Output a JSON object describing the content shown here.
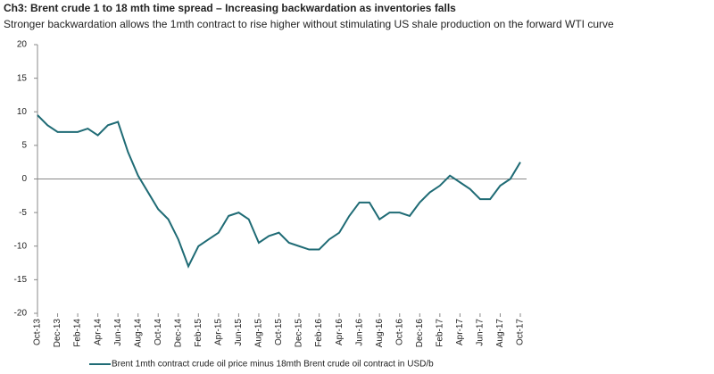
{
  "chart_data": {
    "type": "line",
    "title": "Ch3: Brent crude 1 to 18 mth time spread – Increasing backwardation as inventories falls",
    "subtitle": "Stronger backwardation allows the 1mth contract to rise higher without stimulating US shale production on the forward WTI curve",
    "categories": [
      "Oct-13",
      null,
      "Dec-13",
      null,
      "Feb-14",
      null,
      "Apr-14",
      null,
      "Jun-14",
      null,
      "Aug-14",
      null,
      "Oct-14",
      null,
      "Dec-14",
      null,
      "Feb-15",
      null,
      "Apr-15",
      null,
      "Jun-15",
      null,
      "Aug-15",
      null,
      "Oct-15",
      null,
      "Dec-15",
      null,
      "Feb-16",
      null,
      "Apr-16",
      null,
      "Jun-16",
      null,
      "Aug-16",
      null,
      "Oct-16",
      null,
      "Dec-16",
      null,
      "Feb-17",
      null,
      "Apr-17",
      null,
      "Jun-17",
      null,
      "Aug-17",
      null,
      "Oct-17"
    ],
    "series": [
      {
        "name": "Brent 1mth contract crude oil price minus 18mth Brent crude oil contract in USD/b",
        "color": "#1f6b75",
        "values": [
          9.5,
          8,
          7,
          7,
          7,
          7.5,
          6.5,
          8,
          8.5,
          4,
          0.5,
          -2,
          -4.5,
          -6,
          -9,
          -13,
          -10,
          -9,
          -8,
          -5.5,
          -5,
          -6,
          -9.5,
          -8.5,
          -8,
          -9.5,
          -10,
          -10.5,
          -10.5,
          -9,
          -8,
          -5.5,
          -3.5,
          -3.5,
          -6,
          -5,
          -5,
          -5.5,
          -3.5,
          -2,
          -1,
          0.5,
          -0.5,
          -1.5,
          -3,
          -3,
          -1,
          0,
          2.5
        ]
      }
    ],
    "ylim": [
      -20,
      20
    ],
    "yticks": [
      -20,
      -15,
      -10,
      -5,
      0,
      5,
      10,
      15,
      20
    ]
  }
}
